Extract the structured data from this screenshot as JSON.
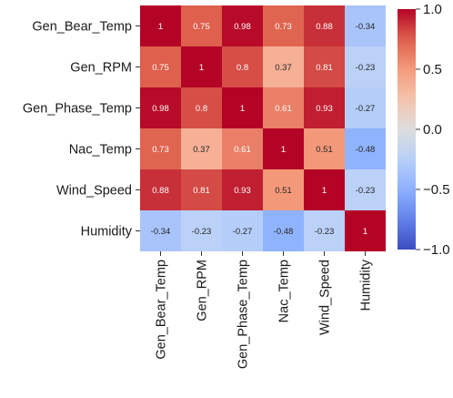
{
  "chart_data": {
    "type": "heatmap",
    "title": "",
    "xlabel": "",
    "ylabel": "",
    "rows": [
      "Gen_Bear_Temp",
      "Gen_RPM",
      "Gen_Phase_Temp",
      "Nac_Temp",
      "Wind_Speed",
      "Humidity"
    ],
    "columns": [
      "Gen_Bear_Temp",
      "Gen_RPM",
      "Gen_Phase_Temp",
      "Nac_Temp",
      "Wind_Speed",
      "Humidity"
    ],
    "values": [
      [
        1,
        0.75,
        0.98,
        0.73,
        0.88,
        -0.34
      ],
      [
        0.75,
        1,
        0.8,
        0.37,
        0.81,
        -0.23
      ],
      [
        0.98,
        0.8,
        1,
        0.61,
        0.93,
        -0.27
      ],
      [
        0.73,
        0.37,
        0.61,
        1,
        0.51,
        -0.48
      ],
      [
        0.88,
        0.81,
        0.93,
        0.51,
        1,
        -0.23
      ],
      [
        -0.34,
        -0.23,
        -0.27,
        -0.48,
        -0.23,
        1
      ]
    ],
    "colormap": "coolwarm",
    "vmin": -1.0,
    "vmax": 1.0,
    "colorbar_ticks": [
      "1.0",
      "0.5",
      "0.0",
      "−0.5",
      "−1.0"
    ],
    "colorbar_tick_values": [
      1.0,
      0.5,
      0.0,
      -0.5,
      -1.0
    ],
    "annotations": true
  }
}
